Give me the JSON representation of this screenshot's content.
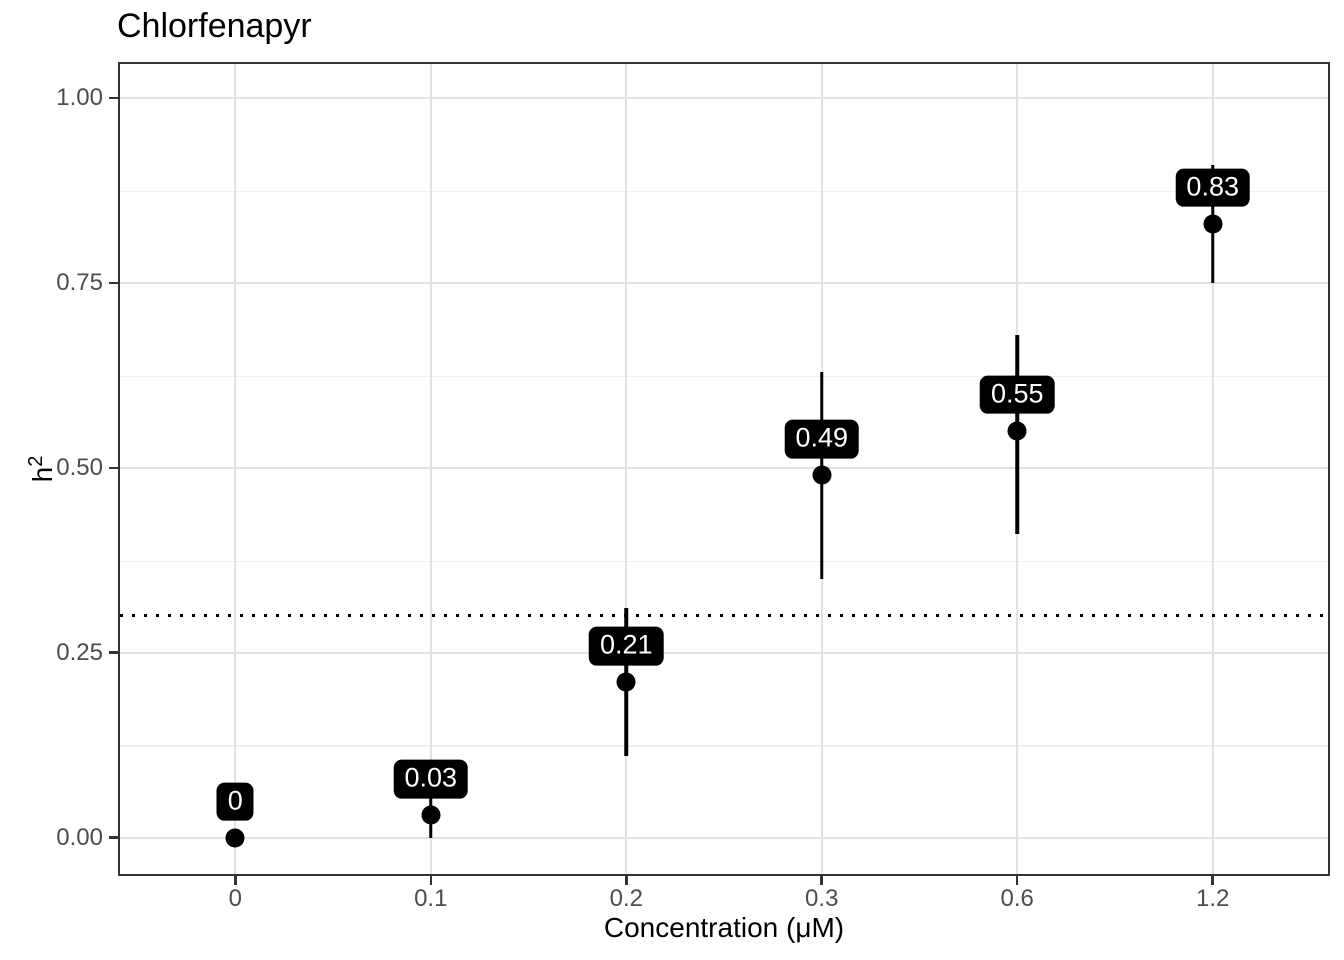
{
  "chart_data": {
    "type": "scatter",
    "title": "Chlorfenapyr",
    "xlabel": "Concentration (μM)",
    "ylabel": "h²",
    "x_axis": {
      "type": "categorical",
      "categories": [
        "0",
        "0.1",
        "0.2",
        "0.3",
        "0.6",
        "1.2"
      ]
    },
    "y_axis": {
      "ticks": [
        {
          "value": 0.0,
          "label": "0.00"
        },
        {
          "value": 0.25,
          "label": "0.25"
        },
        {
          "value": 0.5,
          "label": "0.50"
        },
        {
          "value": 0.75,
          "label": "0.75"
        },
        {
          "value": 1.0,
          "label": "1.00"
        }
      ],
      "minor_gridlines": [
        0.125,
        0.375,
        0.625,
        0.875
      ],
      "range": [
        -0.052,
        1.049
      ]
    },
    "reference_line": {
      "y": 0.3,
      "style": "dotted",
      "color": "#000000"
    },
    "series": [
      {
        "name": "heritability",
        "points": [
          {
            "x": "0",
            "y": 0.0,
            "ci_low": 0.0,
            "ci_high": 0.0,
            "label": "0"
          },
          {
            "x": "0.1",
            "y": 0.03,
            "ci_low": 0.0,
            "ci_high": 0.06,
            "label": "0.03"
          },
          {
            "x": "0.2",
            "y": 0.21,
            "ci_low": 0.11,
            "ci_high": 0.31,
            "label": "0.21"
          },
          {
            "x": "0.3",
            "y": 0.49,
            "ci_low": 0.35,
            "ci_high": 0.63,
            "label": "0.49"
          },
          {
            "x": "0.6",
            "y": 0.55,
            "ci_low": 0.41,
            "ci_high": 0.68,
            "label": "0.55"
          },
          {
            "x": "1.2",
            "y": 0.83,
            "ci_low": 0.75,
            "ci_high": 0.91,
            "label": "0.83"
          }
        ]
      }
    ],
    "legend": "none",
    "grid": {
      "major_x": true,
      "major_y": true,
      "minor_y": true,
      "minor_x": false
    },
    "colors": {
      "background": "#ffffff",
      "point": "#000000",
      "errorbar": "#000000",
      "label_bg": "#000000",
      "label_text": "#ffffff",
      "grid_major": "#e2e2e2",
      "grid_minor": "#efefef",
      "panel_border": "#333333",
      "tick_text": "#4d4d4d",
      "title_text": "#000000"
    }
  }
}
